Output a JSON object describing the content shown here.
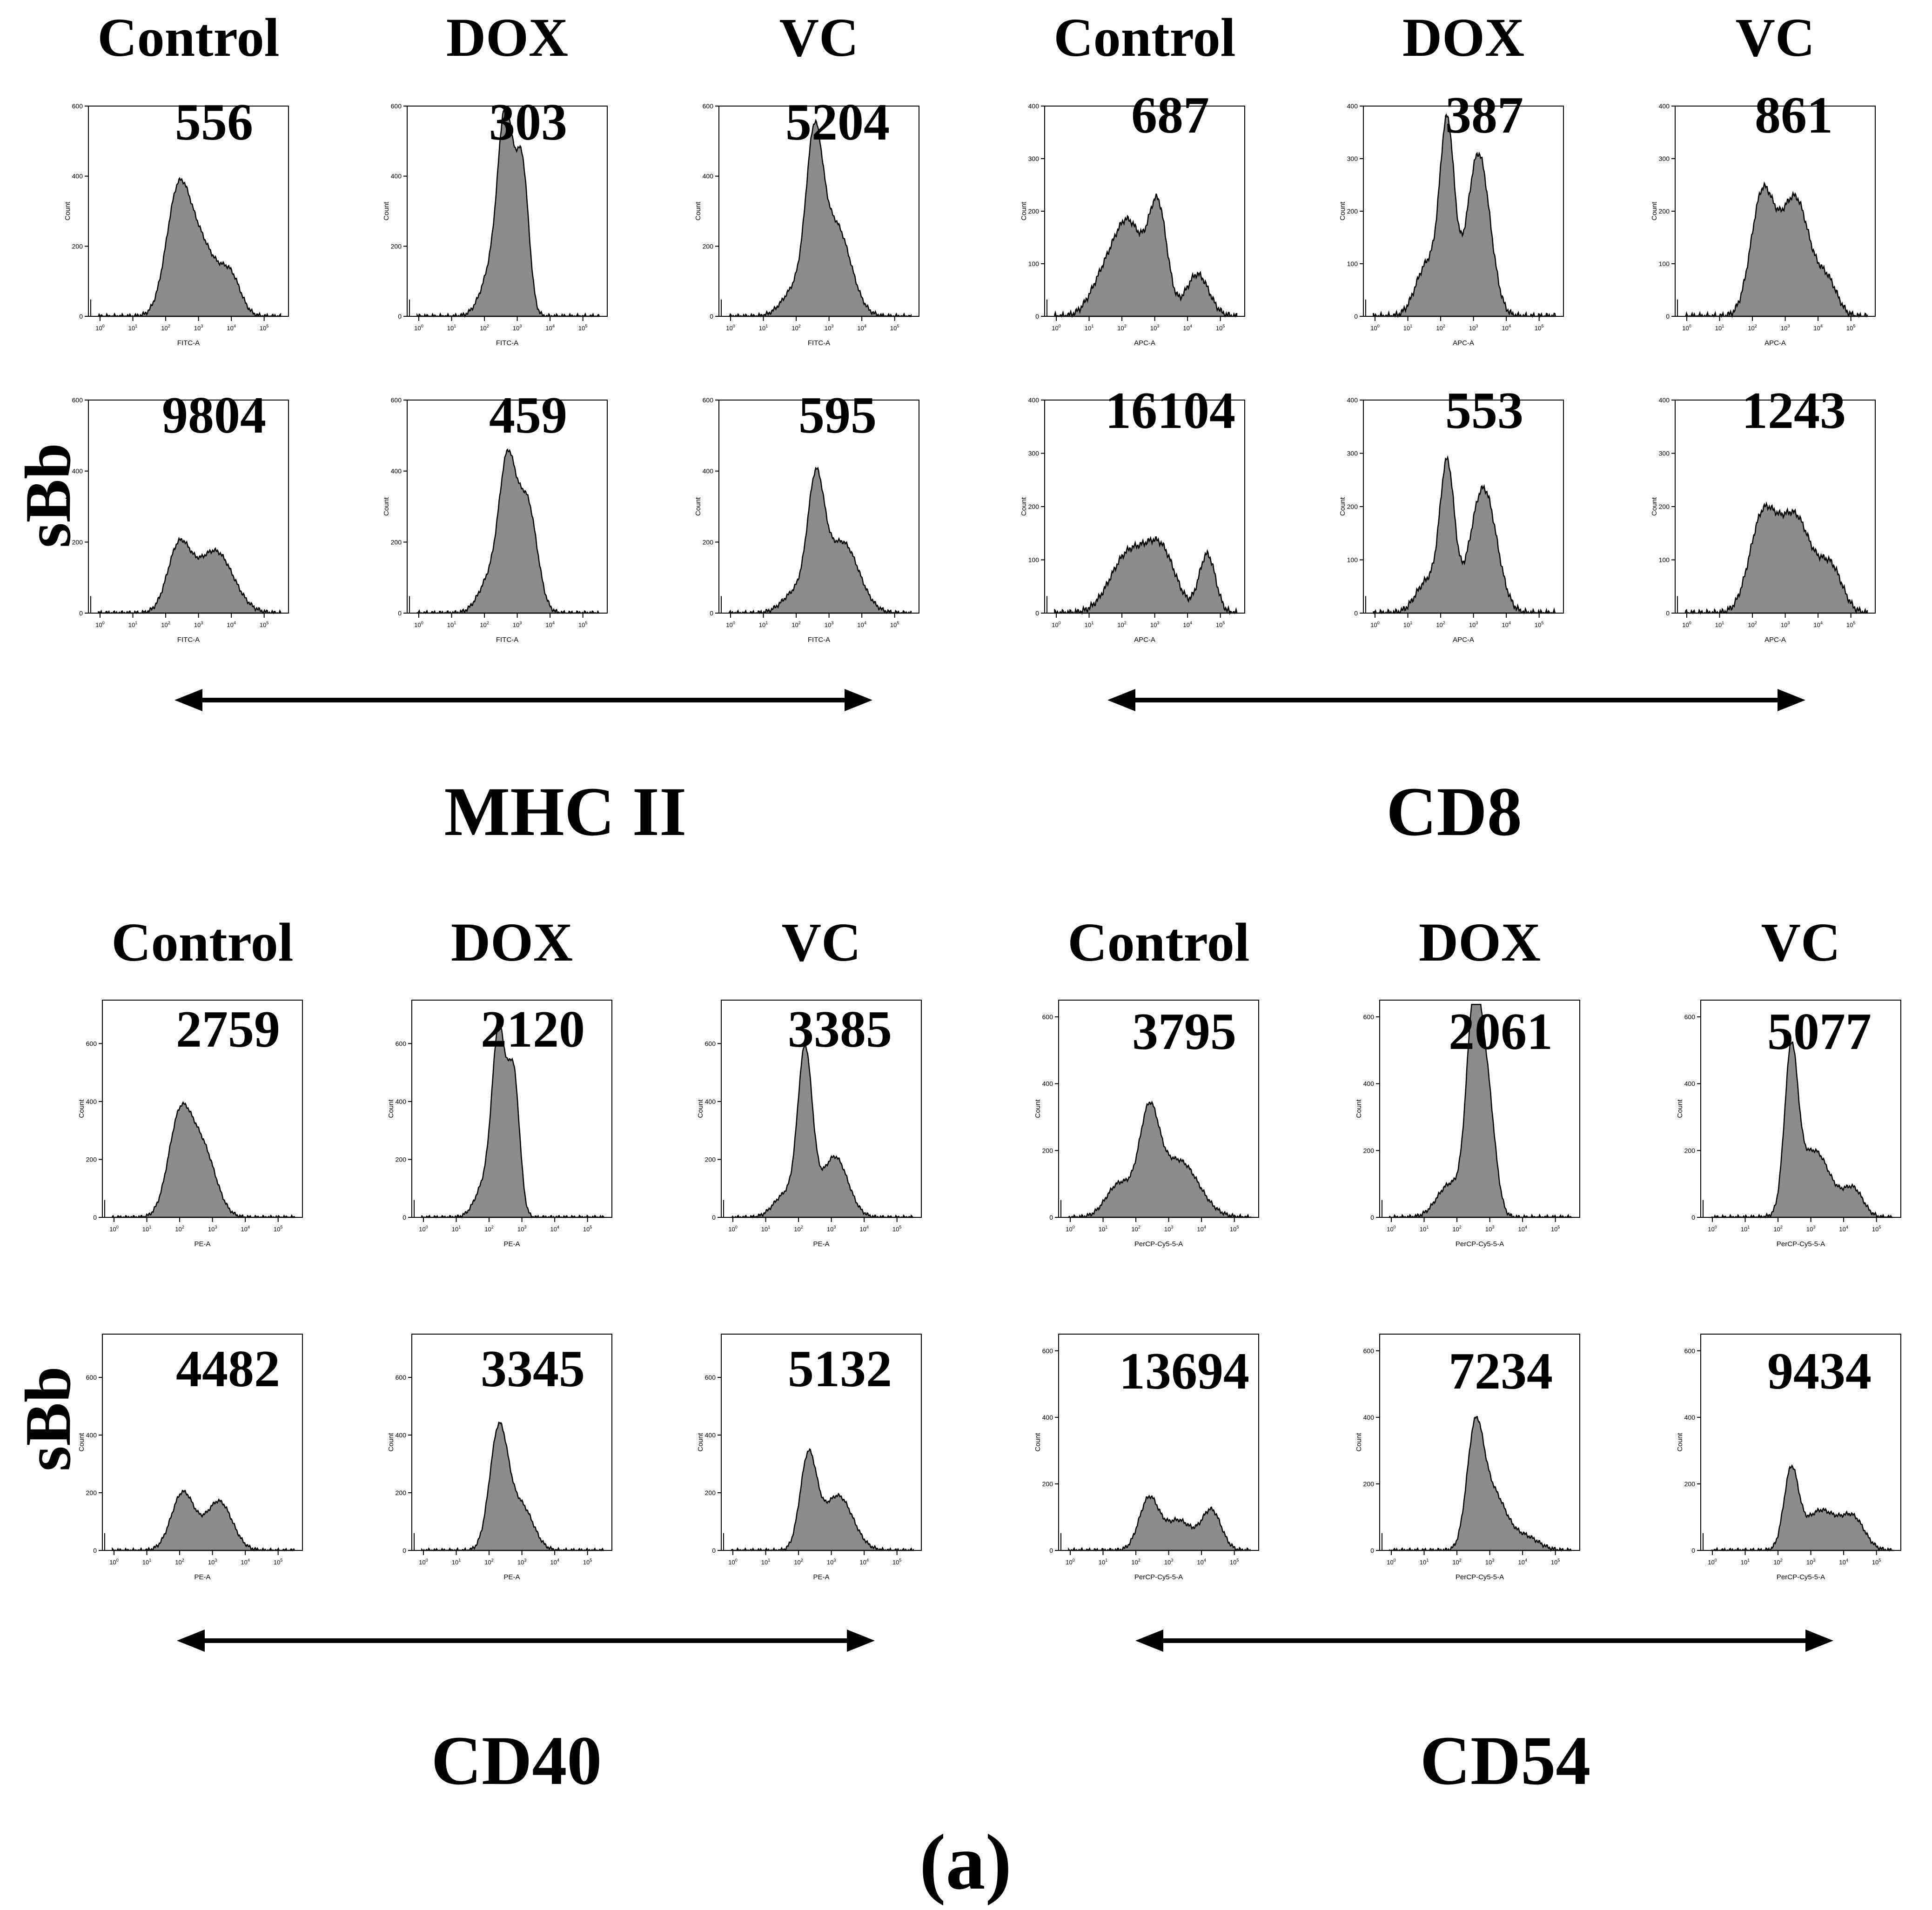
{
  "figure_label": "(a)",
  "cell_label": "sBb",
  "arrow_symbol": "double-headed-arrow",
  "colors": {
    "fill": "#8c8c8c",
    "stroke": "#000000",
    "text": "#000000"
  },
  "chart_data": [
    {
      "type": "area",
      "marker": "MHC II",
      "channel": "FITC-A",
      "ylabel": "Count",
      "groups": [
        "Control",
        "DOX",
        "VC"
      ],
      "rows": [
        {
          "ylim": [
            0,
            600
          ],
          "yticks": [
            "0",
            "200",
            "400",
            "600"
          ],
          "panels": [
            {
              "group": "Control",
              "value": "556",
              "peaks": [
                [
                  2.35,
                  270,
                  0.35
                ],
                [
                  3.0,
                  215,
                  0.55
                ],
                [
                  4.0,
                  90,
                  0.3
                ]
              ]
            },
            {
              "group": "DOX",
              "value": "303",
              "peaks": [
                [
                  2.65,
                  500,
                  0.22
                ],
                [
                  3.15,
                  420,
                  0.2
                ],
                [
                  2.3,
                  150,
                  0.35
                ]
              ]
            },
            {
              "group": "VC",
              "value": "5204",
              "peaks": [
                [
                  2.55,
                  430,
                  0.25
                ],
                [
                  3.2,
                  260,
                  0.45
                ],
                [
                  2.0,
                  80,
                  0.4
                ]
              ]
            }
          ]
        },
        {
          "ylim": [
            0,
            600
          ],
          "yticks": [
            "0",
            "200",
            "400",
            "600"
          ],
          "panels": [
            {
              "group": "Control",
              "value": "9804",
              "peaks": [
                [
                  2.4,
                  180,
                  0.35
                ],
                [
                  3.5,
                  175,
                  0.55
                ]
              ]
            },
            {
              "group": "DOX",
              "value": "459",
              "peaks": [
                [
                  2.7,
                  380,
                  0.25
                ],
                [
                  3.3,
                  310,
                  0.3
                ],
                [
                  2.2,
                  100,
                  0.35
                ]
              ]
            },
            {
              "group": "VC",
              "value": "595",
              "peaks": [
                [
                  2.6,
                  330,
                  0.25
                ],
                [
                  3.4,
                  200,
                  0.5
                ],
                [
                  2.0,
                  60,
                  0.4
                ]
              ]
            }
          ]
        }
      ]
    },
    {
      "type": "area",
      "marker": "CD8",
      "channel": "APC-A",
      "ylabel": "Count",
      "groups": [
        "Control",
        "DOX",
        "VC"
      ],
      "rows": [
        {
          "ylim": [
            0,
            400
          ],
          "yticks": [
            "0",
            "100",
            "200",
            "300",
            "400"
          ],
          "panels": [
            {
              "group": "Control",
              "value": "687",
              "peaks": [
                [
                  2.2,
                  175,
                  0.45
                ],
                [
                  3.1,
                  200,
                  0.28
                ],
                [
                  4.3,
                  80,
                  0.35
                ],
                [
                  1.4,
                  60,
                  0.4
                ]
              ]
            },
            {
              "group": "DOX",
              "value": "387",
              "peaks": [
                [
                  2.2,
                  350,
                  0.22
                ],
                [
                  3.15,
                  310,
                  0.35
                ],
                [
                  1.6,
                  100,
                  0.35
                ]
              ]
            },
            {
              "group": "VC",
              "value": "861",
              "peaks": [
                [
                  2.3,
                  225,
                  0.35
                ],
                [
                  3.3,
                  225,
                  0.45
                ],
                [
                  4.3,
                  60,
                  0.3
                ]
              ]
            }
          ]
        },
        {
          "ylim": [
            0,
            400
          ],
          "yticks": [
            "0",
            "100",
            "200",
            "300",
            "400"
          ],
          "panels": [
            {
              "group": "Control",
              "value": "16104",
              "peaks": [
                [
                  2.2,
                  110,
                  0.55
                ],
                [
                  3.2,
                  110,
                  0.45
                ],
                [
                  4.6,
                  110,
                  0.25
                ]
              ]
            },
            {
              "group": "DOX",
              "value": "553",
              "peaks": [
                [
                  2.2,
                  270,
                  0.22
                ],
                [
                  3.3,
                  235,
                  0.4
                ],
                [
                  1.6,
                  60,
                  0.35
                ]
              ]
            },
            {
              "group": "VC",
              "value": "1243",
              "peaks": [
                [
                  2.3,
                  170,
                  0.4
                ],
                [
                  3.3,
                  180,
                  0.5
                ],
                [
                  4.4,
                  80,
                  0.35
                ]
              ]
            }
          ]
        }
      ]
    },
    {
      "type": "area",
      "marker": "CD40",
      "channel": "PE-A",
      "ylabel": "Count",
      "groups": [
        "Control",
        "DOX",
        "VC"
      ],
      "rows": [
        {
          "ylim": [
            0,
            750
          ],
          "yticks": [
            "0",
            "200",
            "400",
            "600"
          ],
          "panels": [
            {
              "group": "Control",
              "value": "2759",
              "peaks": [
                [
                  2.0,
                  330,
                  0.35
                ],
                [
                  2.7,
                  230,
                  0.4
                ]
              ]
            },
            {
              "group": "DOX",
              "value": "2120",
              "peaks": [
                [
                  2.3,
                  600,
                  0.2
                ],
                [
                  2.75,
                  480,
                  0.18
                ],
                [
                  1.9,
                  120,
                  0.3
                ]
              ]
            },
            {
              "group": "VC",
              "value": "3385",
              "peaks": [
                [
                  2.2,
                  560,
                  0.22
                ],
                [
                  3.1,
                  210,
                  0.4
                ],
                [
                  1.6,
                  80,
                  0.35
                ]
              ]
            }
          ]
        },
        {
          "ylim": [
            0,
            750
          ],
          "yticks": [
            "0",
            "200",
            "400",
            "600"
          ],
          "panels": [
            {
              "group": "Control",
              "value": "4482",
              "peaks": [
                [
                  2.1,
                  200,
                  0.35
                ],
                [
                  3.2,
                  170,
                  0.4
                ]
              ]
            },
            {
              "group": "DOX",
              "value": "3345",
              "peaks": [
                [
                  2.3,
                  420,
                  0.28
                ],
                [
                  3.0,
                  150,
                  0.35
                ]
              ]
            },
            {
              "group": "VC",
              "value": "5132",
              "peaks": [
                [
                  2.3,
                  320,
                  0.25
                ],
                [
                  3.2,
                  190,
                  0.45
                ]
              ]
            }
          ]
        }
      ]
    },
    {
      "type": "area",
      "marker": "CD54",
      "channel": "PerCP-Cy5-5-A",
      "ylabel": "Count",
      "groups": [
        "Control",
        "DOX",
        "VC"
      ],
      "rows": [
        {
          "ylim": [
            0,
            650
          ],
          "yticks": [
            "0",
            "200",
            "400",
            "600"
          ],
          "panels": [
            {
              "group": "Control",
              "value": "3795",
              "peaks": [
                [
                  2.4,
                  280,
                  0.3
                ],
                [
                  3.3,
                  170,
                  0.6
                ],
                [
                  1.5,
                  100,
                  0.4
                ]
              ]
            },
            {
              "group": "DOX",
              "value": "2061",
              "peaks": [
                [
                  2.5,
                  560,
                  0.22
                ],
                [
                  2.9,
                  380,
                  0.25
                ],
                [
                  1.8,
                  100,
                  0.4
                ]
              ]
            },
            {
              "group": "VC",
              "value": "5077",
              "peaks": [
                [
                  2.4,
                  450,
                  0.2
                ],
                [
                  3.1,
                  200,
                  0.5
                ],
                [
                  4.3,
                  80,
                  0.3
                ]
              ]
            }
          ]
        },
        {
          "ylim": [
            0,
            650
          ],
          "yticks": [
            "0",
            "200",
            "400",
            "600"
          ],
          "panels": [
            {
              "group": "Control",
              "value": "13694",
              "peaks": [
                [
                  2.4,
                  155,
                  0.3
                ],
                [
                  3.3,
                  90,
                  0.4
                ],
                [
                  4.3,
                  120,
                  0.3
                ]
              ]
            },
            {
              "group": "DOX",
              "value": "7234",
              "peaks": [
                [
                  2.55,
                  330,
                  0.25
                ],
                [
                  3.1,
                  170,
                  0.4
                ],
                [
                  4.1,
                  40,
                  0.4
                ]
              ]
            },
            {
              "group": "VC",
              "value": "9434",
              "peaks": [
                [
                  2.4,
                  230,
                  0.22
                ],
                [
                  3.3,
                  120,
                  0.5
                ],
                [
                  4.3,
                  90,
                  0.35
                ]
              ]
            }
          ]
        }
      ]
    }
  ]
}
